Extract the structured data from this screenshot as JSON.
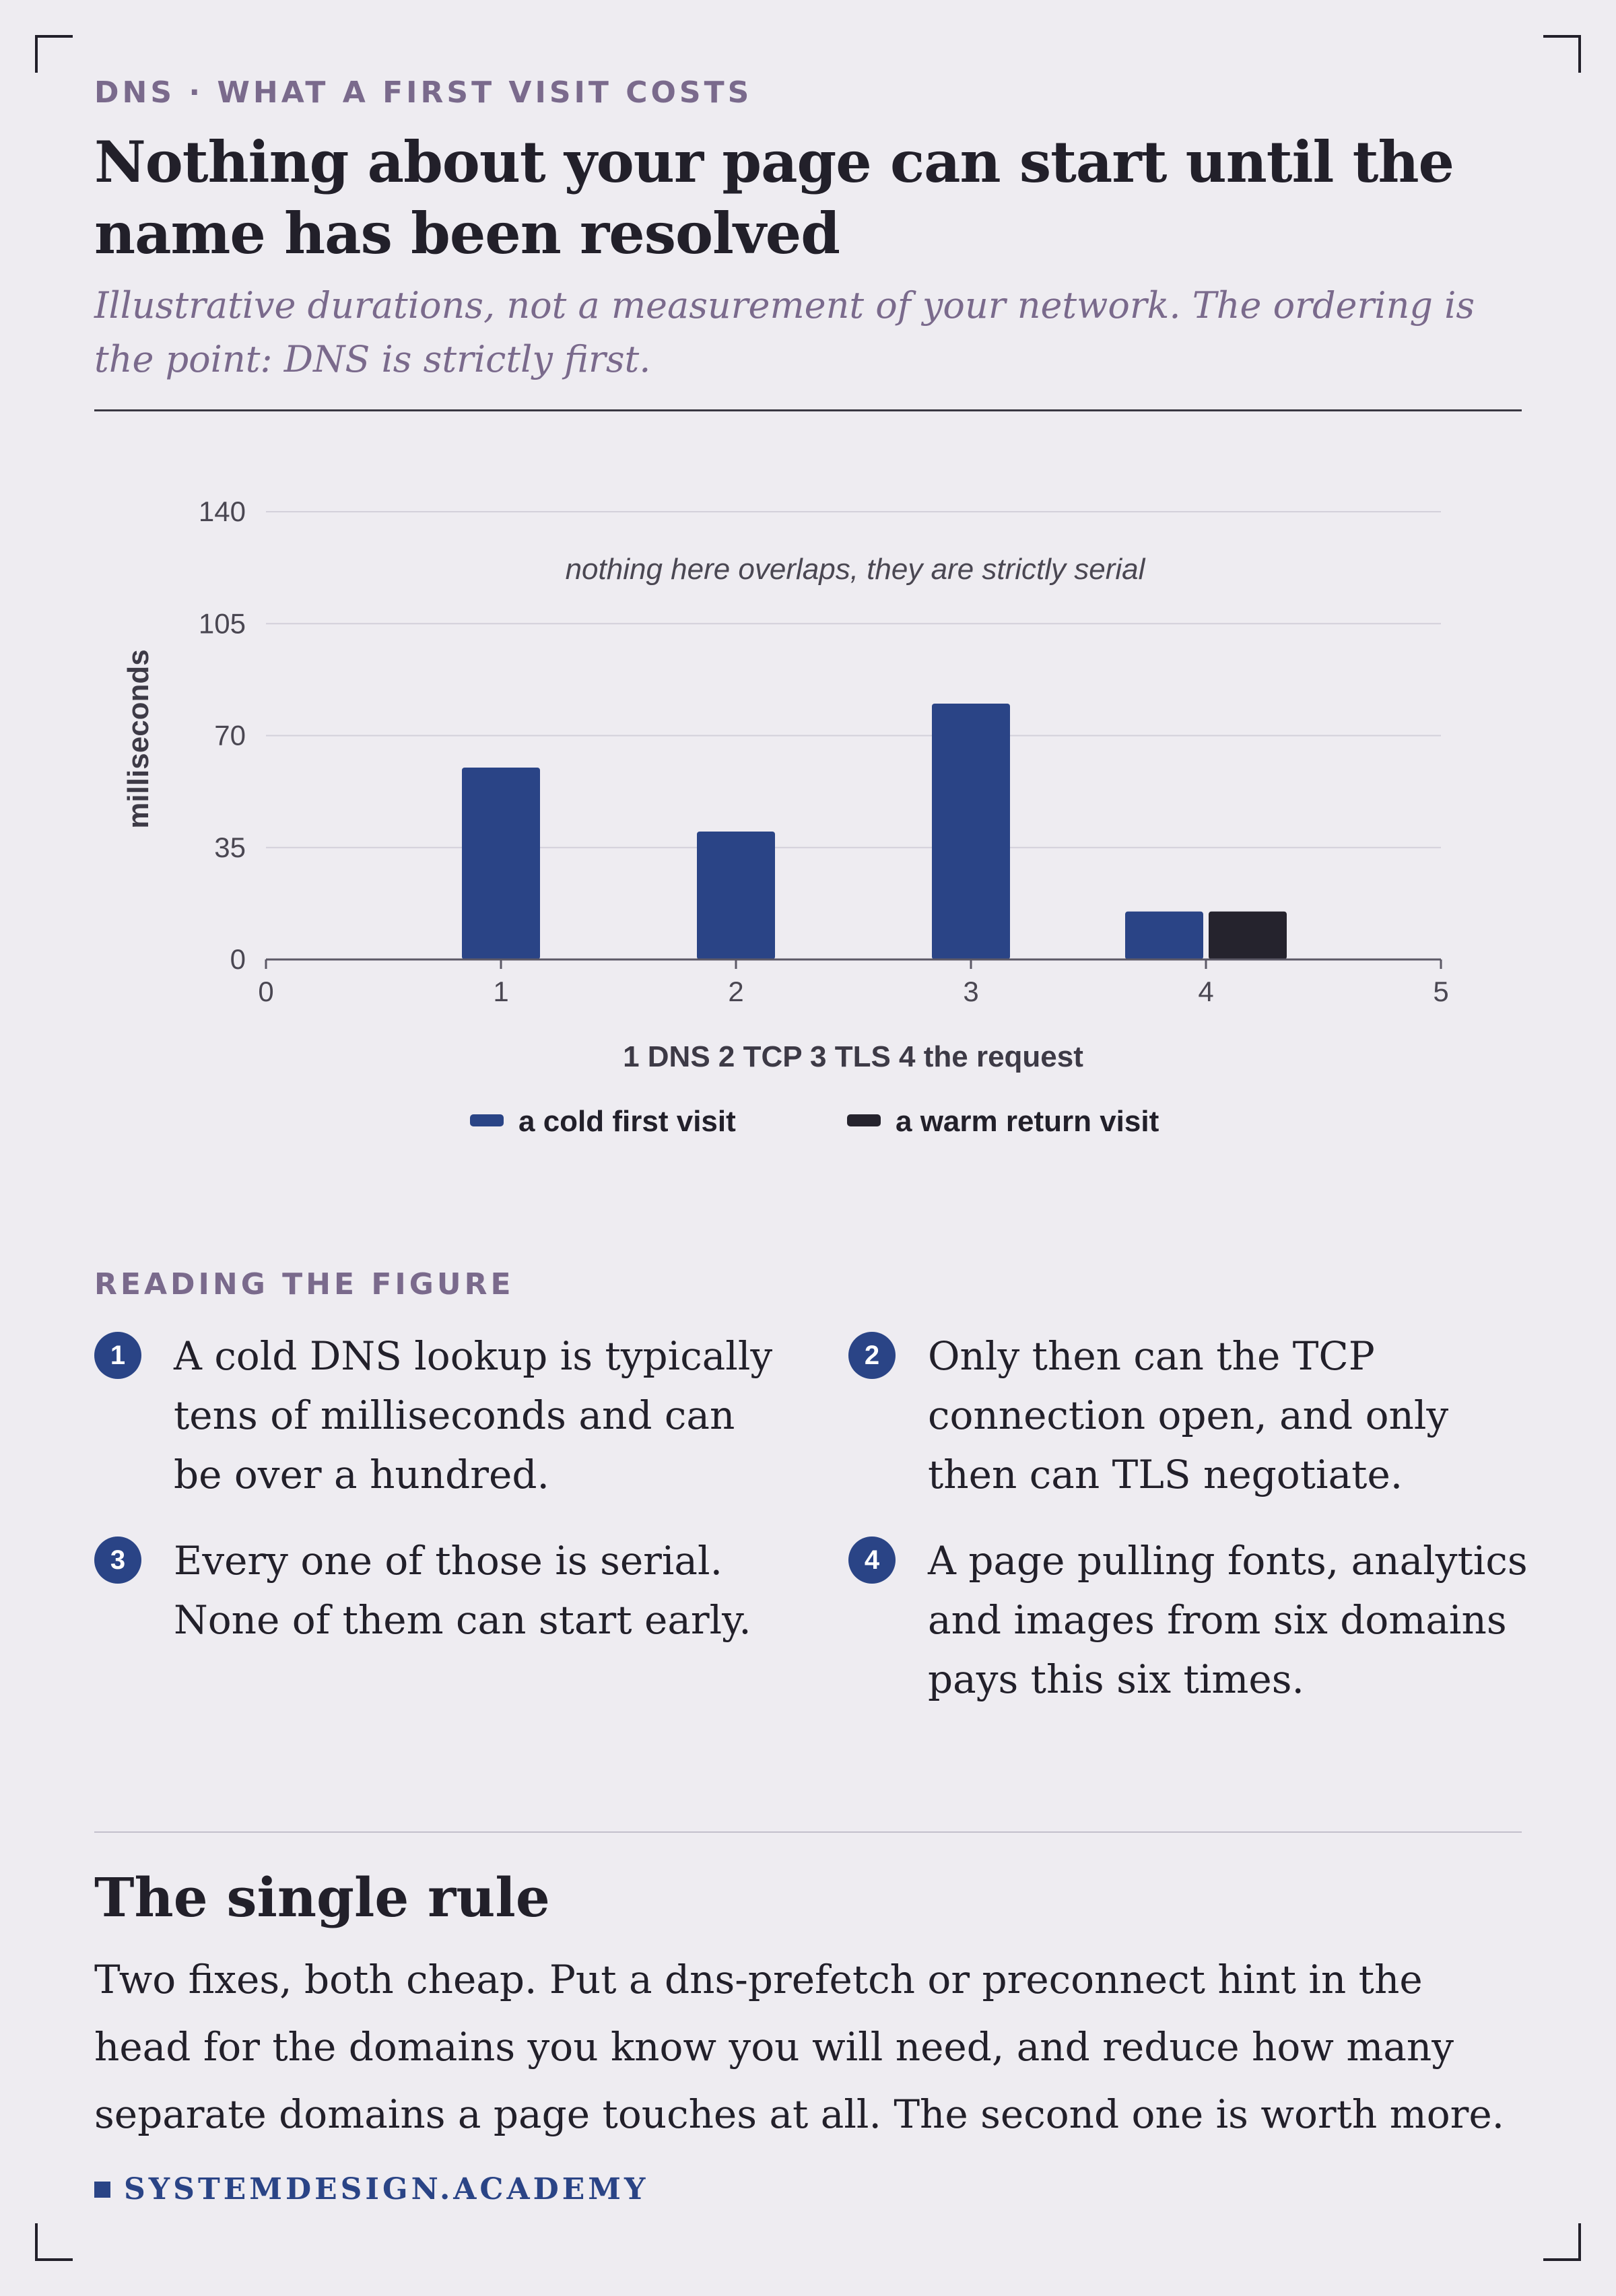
{
  "eyebrow": "DNS · WHAT A FIRST VISIT COSTS",
  "title": "Nothing about your page can start until the name has been resolved",
  "subtitle": "Illustrative durations, not a measurement of your network. The ordering is the point: DNS is strictly first.",
  "chart_data": {
    "type": "bar",
    "xlabel": "1 DNS 2 TCP 3 TLS 4 the request",
    "ylabel": "milliseconds",
    "xlim": [
      0,
      5
    ],
    "ylim": [
      0,
      140
    ],
    "x_ticks": [
      0,
      1,
      2,
      3,
      4,
      5
    ],
    "y_ticks": [
      0,
      35,
      70,
      105,
      140
    ],
    "grid": true,
    "legend_placement": "bottom-center",
    "annotation": "nothing here overlaps, they are strictly serial",
    "series": [
      {
        "name": "a cold first visit",
        "color": "#2a4486",
        "points": [
          {
            "x": 1,
            "y": 60
          },
          {
            "x": 2,
            "y": 40
          },
          {
            "x": 3,
            "y": 80
          },
          {
            "x": 4,
            "y": 15
          }
        ]
      },
      {
        "name": "a warm return visit",
        "color": "#25232d",
        "points": [
          {
            "x": 4,
            "y": 15
          }
        ]
      }
    ]
  },
  "reading": {
    "label": "READING THE FIGURE",
    "notes": [
      {
        "num": "1",
        "text": "A cold DNS lookup is typically tens of milliseconds and can be over a hundred."
      },
      {
        "num": "2",
        "text": "Only then can the TCP connection open, and only then can TLS negotiate."
      },
      {
        "num": "3",
        "text": "Every one of those is serial. None of them can start early."
      },
      {
        "num": "4",
        "text": "A page pulling fonts, analytics and images from six domains pays this six times."
      }
    ]
  },
  "single_rule": {
    "heading": "The single rule",
    "body": "Two fixes, both cheap. Put a dns-prefetch or preconnect hint in the head for the domains you know you will need, and reduce how many separate domains a page touches at all. The second one is worth more."
  },
  "brand": "SYSTEMDESIGN.ACADEMY"
}
